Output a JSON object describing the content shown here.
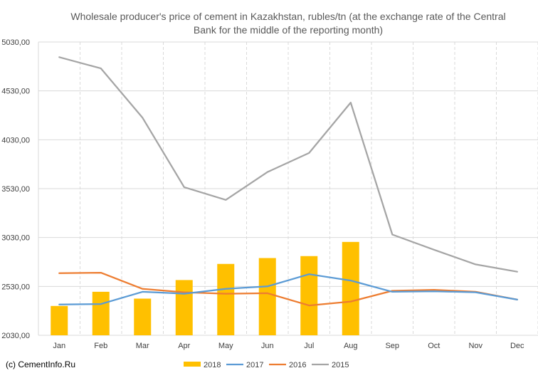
{
  "chart_data": {
    "type": "bar+line",
    "title_lines": [
      "Wholesale producer's price of cement in Kazakhstan, rubles/tn (at the exchange rate of the Central",
      "Bank for the middle of the reporting month)"
    ],
    "categories": [
      "Jan",
      "Feb",
      "Mar",
      "Apr",
      "May",
      "Jun",
      "Jul",
      "Aug",
      "Sep",
      "Oct",
      "Nov",
      "Dec"
    ],
    "ylim": [
      2030,
      5030
    ],
    "yticks": [
      "2030,00",
      "2530,00",
      "3030,00",
      "3530,00",
      "4030,00",
      "4530,00",
      "5030,00"
    ],
    "grid": true,
    "legend_position": "bottom",
    "series": [
      {
        "name": "2018",
        "kind": "bar",
        "color": "#FFC000",
        "values": [
          2330,
          2475,
          2405,
          2595,
          2760,
          2820,
          2840,
          2985,
          null,
          null,
          null,
          null
        ]
      },
      {
        "name": "2017",
        "kind": "line",
        "color": "#5B9BD5",
        "values": [
          2345,
          2350,
          2475,
          2455,
          2505,
          2530,
          2655,
          2590,
          2475,
          2480,
          2470,
          2395
        ]
      },
      {
        "name": "2016",
        "kind": "line",
        "color": "#ED7D31",
        "values": [
          2665,
          2670,
          2505,
          2470,
          2455,
          2460,
          2335,
          2375,
          2485,
          2495,
          2475,
          2395
        ]
      },
      {
        "name": "2015",
        "kind": "line",
        "color": "#A5A5A5",
        "values": [
          4875,
          4760,
          4255,
          3545,
          3415,
          3700,
          3895,
          4410,
          3060,
          2905,
          2755,
          2680
        ]
      }
    ]
  },
  "source_note": "(c) CementInfo.Ru"
}
